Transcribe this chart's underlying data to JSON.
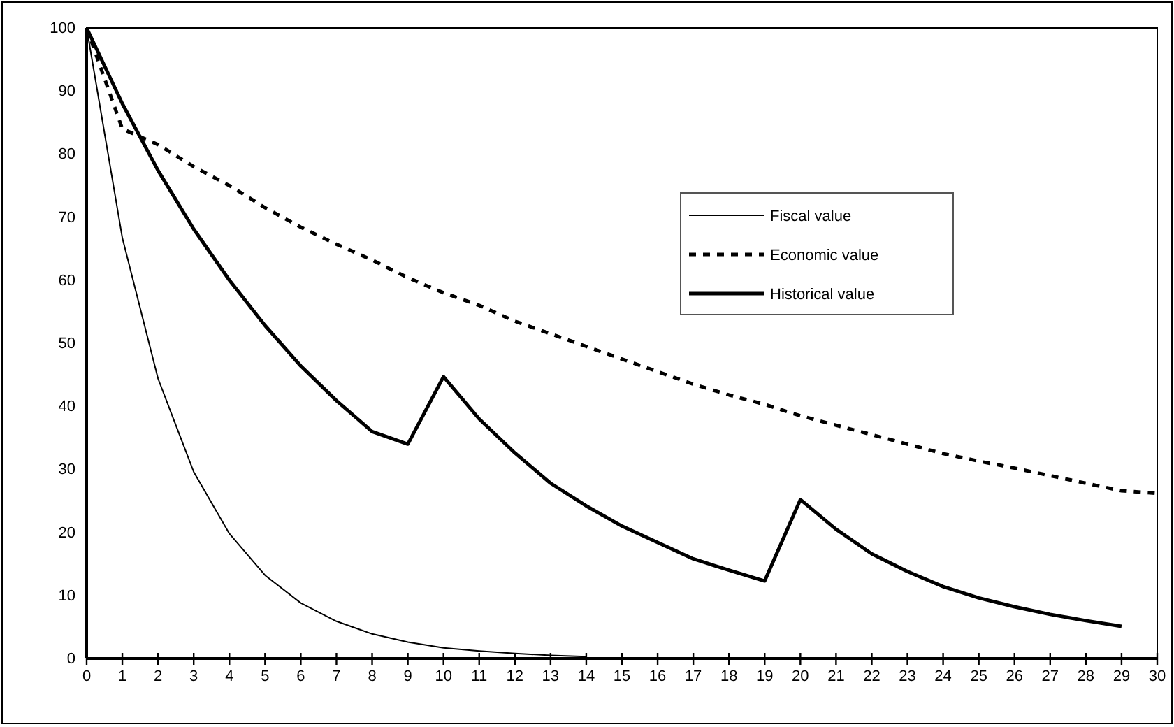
{
  "chart_data": {
    "type": "line",
    "x": [
      0,
      1,
      2,
      3,
      4,
      5,
      6,
      7,
      8,
      9,
      10,
      11,
      12,
      13,
      14,
      15,
      16,
      17,
      18,
      19,
      20,
      21,
      22,
      23,
      24,
      25,
      26,
      27,
      28,
      29,
      30
    ],
    "xlim": [
      0,
      30
    ],
    "xticks": [
      0,
      1,
      2,
      3,
      4,
      5,
      6,
      7,
      8,
      9,
      10,
      11,
      12,
      13,
      14,
      15,
      16,
      17,
      18,
      19,
      20,
      21,
      22,
      23,
      24,
      25,
      26,
      27,
      28,
      29,
      30
    ],
    "ylim": [
      0,
      100
    ],
    "yticks": [
      0,
      10,
      20,
      30,
      40,
      50,
      60,
      70,
      80,
      90,
      100
    ],
    "grid": false,
    "legend": "right",
    "marker": "none",
    "series": [
      {
        "name": "Fiscal value",
        "color": "#000000",
        "line_style": "solid",
        "values": [
          100,
          66.7,
          44.4,
          29.6,
          19.8,
          13.2,
          8.8,
          5.9,
          3.9,
          2.6,
          1.7,
          1.2,
          0.8,
          0.5,
          0.3,
          null,
          null,
          null,
          null,
          null,
          null,
          null,
          null,
          null,
          null,
          null,
          null,
          null,
          null,
          null,
          null
        ]
      },
      {
        "name": "Economic value",
        "color": "#000000",
        "line_style": "dashed",
        "values": [
          100,
          84,
          81.5,
          78,
          75,
          71.5,
          68.4,
          65.7,
          63.2,
          60.4,
          58,
          56,
          53.5,
          51.5,
          49.5,
          47.5,
          45.5,
          43.5,
          41.8,
          40.3,
          38.5,
          37,
          35.5,
          34,
          32.5,
          31.3,
          30.2,
          29,
          27.8,
          26.6,
          26.2
        ]
      },
      {
        "name": "Historical value",
        "color": "#000000",
        "line_style": "solid",
        "values": [
          100,
          88,
          77.4,
          68.1,
          60,
          52.8,
          46.4,
          40.9,
          36,
          34,
          44.7,
          38,
          32.6,
          27.8,
          24.2,
          21,
          18.4,
          15.8,
          14,
          12.3,
          25.2,
          20.5,
          16.6,
          13.8,
          11.4,
          9.6,
          8.2,
          7,
          6,
          5.1,
          null
        ]
      }
    ]
  }
}
